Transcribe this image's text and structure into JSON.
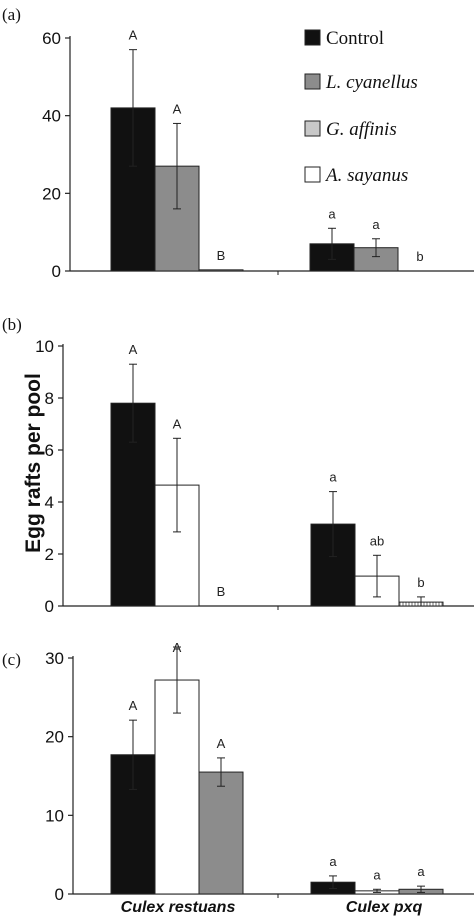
{
  "legend": [
    {
      "label": "Control",
      "italic": false,
      "fill": "#111111"
    },
    {
      "label": "L. cyanellus",
      "italic": true,
      "fill": "#8c8c8c"
    },
    {
      "label": "G. affinis",
      "italic": true,
      "fill": "#c8c8c8"
    },
    {
      "label": "A. sayanus",
      "italic": true,
      "fill": "#ffffff"
    }
  ],
  "ylabel": "Egg rafts per pool",
  "categories": [
    "Culex restuans",
    "Culex pxq"
  ],
  "colors": {
    "Control": "#111111",
    "L. cyanellus": "#8c8c8c",
    "G. affinis": "#c8c8c8",
    "A. sayanus": "#ffffff",
    "G. affinis hatch": "#888888"
  },
  "chart_data": [
    {
      "type": "bar",
      "panel": "(a)",
      "categories": [
        "Culex restuans",
        "Culex pxq"
      ],
      "ylim": [
        0,
        60
      ],
      "yticks": [
        0,
        20,
        40,
        60
      ],
      "series": [
        {
          "name": "Control",
          "values": [
            42,
            7
          ],
          "errors": [
            15,
            4
          ],
          "letters": [
            "A",
            "a"
          ]
        },
        {
          "name": "L. cyanellus",
          "values": [
            27,
            6
          ],
          "errors": [
            11,
            2.3
          ],
          "letters": [
            "A",
            "a"
          ]
        },
        {
          "name": "G. affinis",
          "values": [
            0.3,
            0
          ],
          "errors": [
            0,
            0
          ],
          "letters": [
            "B",
            "b"
          ]
        },
        {
          "name": "A. sayanus",
          "values": [
            0,
            0
          ],
          "errors": [
            0,
            0
          ],
          "letters": [
            "",
            ""
          ]
        }
      ]
    },
    {
      "type": "bar",
      "panel": "(b)",
      "categories": [
        "Culex restuans",
        "Culex pxq"
      ],
      "ylim": [
        0,
        10
      ],
      "yticks": [
        0,
        2,
        4,
        6,
        8,
        10
      ],
      "series": [
        {
          "name": "Control",
          "values": [
            7.8,
            3.15
          ],
          "errors": [
            1.5,
            1.25
          ],
          "letters": [
            "A",
            "a"
          ]
        },
        {
          "name": "A. sayanus",
          "values": [
            4.65,
            1.15
          ],
          "errors": [
            1.8,
            0.8
          ],
          "letters": [
            "A",
            "ab"
          ]
        },
        {
          "name": "G. affinis",
          "values": [
            0,
            0.15
          ],
          "errors": [
            0,
            0.2
          ],
          "letters": [
            "B",
            "b"
          ]
        }
      ]
    },
    {
      "type": "bar",
      "panel": "(c)",
      "categories": [
        "Culex restuans",
        "Culex pxq"
      ],
      "ylim": [
        0,
        30
      ],
      "yticks": [
        0,
        10,
        20,
        30
      ],
      "series": [
        {
          "name": "Control",
          "values": [
            17.7,
            1.5
          ],
          "errors": [
            4.4,
            0.8
          ],
          "letters": [
            "A",
            "a"
          ]
        },
        {
          "name": "A. sayanus",
          "values": [
            27.2,
            0.4
          ],
          "errors": [
            4.2,
            0.2
          ],
          "letters": [
            "A",
            "a"
          ]
        },
        {
          "name": "L. cyanellus",
          "values": [
            15.5,
            0.6
          ],
          "errors": [
            1.8,
            0.4
          ],
          "letters": [
            "A",
            "a"
          ]
        }
      ]
    }
  ]
}
